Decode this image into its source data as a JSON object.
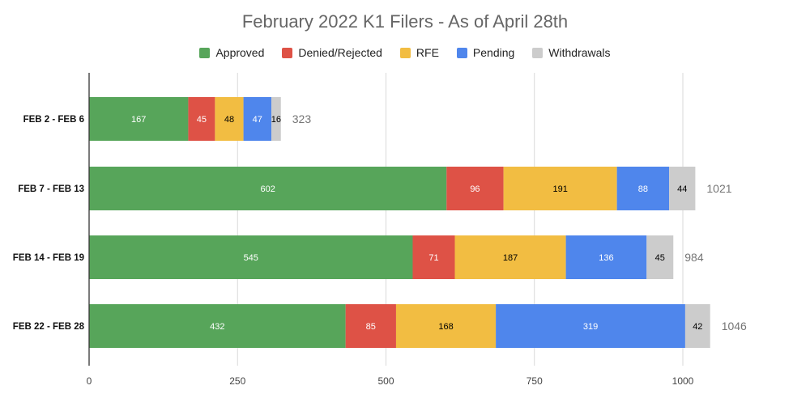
{
  "chart_data": {
    "type": "bar",
    "orientation": "horizontal",
    "stacked": true,
    "title": "February 2022 K1 Filers - As of April 28th",
    "categories": [
      "FEB 2 - FEB 6",
      "FEB 7 - FEB 13",
      "FEB 14 - FEB 19",
      "FEB 22 - FEB 28"
    ],
    "series": [
      {
        "name": "Approved",
        "color": "#57a55a",
        "label_color": "#ffffff",
        "values": [
          167,
          602,
          545,
          432
        ]
      },
      {
        "name": "Denied/Rejected",
        "color": "#de5246",
        "label_color": "#ffffff",
        "values": [
          45,
          96,
          71,
          85
        ]
      },
      {
        "name": "RFE",
        "color": "#f2bd42",
        "label_color": "#000000",
        "values": [
          48,
          191,
          187,
          168
        ]
      },
      {
        "name": "Pending",
        "color": "#4f86ec",
        "label_color": "#ffffff",
        "values": [
          47,
          88,
          136,
          319
        ]
      },
      {
        "name": "Withdrawals",
        "color": "#cccccc",
        "label_color": "#000000",
        "values": [
          16,
          44,
          45,
          42
        ]
      }
    ],
    "totals": [
      323,
      1021,
      984,
      1046
    ],
    "xlim": [
      0,
      1000
    ],
    "xticks": [
      0,
      250,
      500,
      750,
      1000
    ],
    "grid": true,
    "legend_position": "top"
  }
}
